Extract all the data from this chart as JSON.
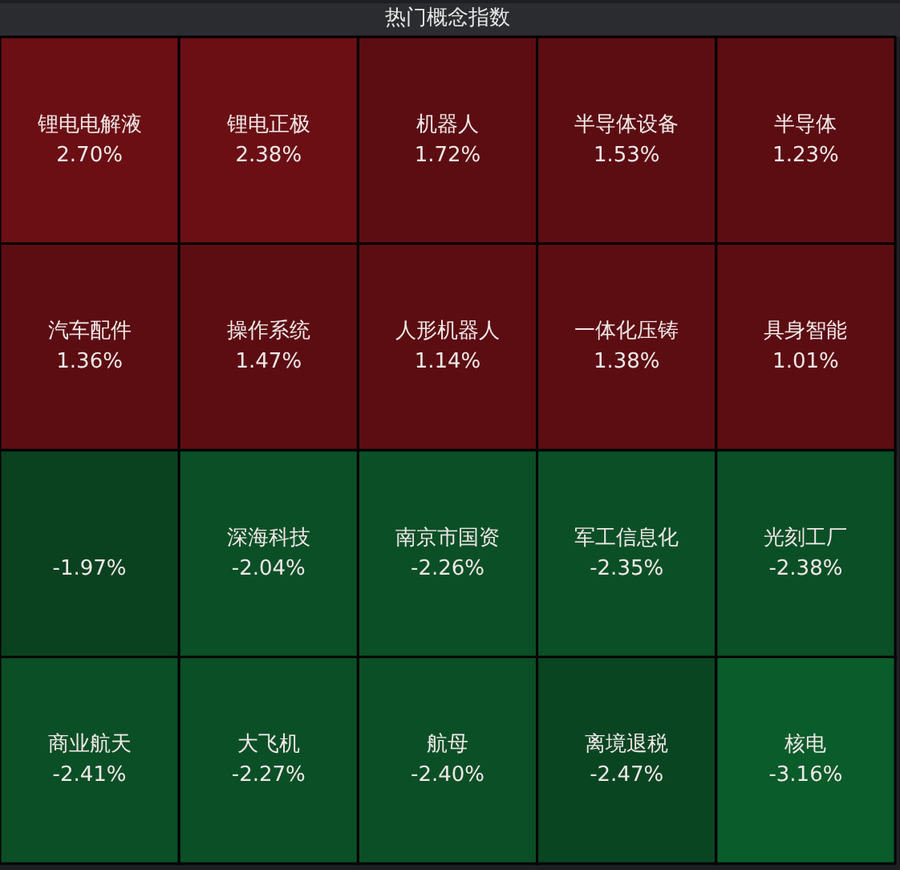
{
  "chart_data": {
    "type": "other",
    "title": "热门概念指数",
    "categories": [
      "锂电电解液",
      "锂电正极",
      "机器人",
      "半导体设备",
      "半导体",
      "汽车配件",
      "操作系统",
      "人形机器人",
      "一体化压铸",
      "具身智能",
      null,
      "深海科技",
      "南京市国资",
      "军工信息化",
      "光刻工厂",
      "商业航天",
      "大飞机",
      "航母",
      "离境退税",
      "核电"
    ],
    "values": [
      2.7,
      2.38,
      1.72,
      1.53,
      1.23,
      1.36,
      1.47,
      1.14,
      1.38,
      1.01,
      -1.97,
      -2.04,
      -2.26,
      -2.35,
      -2.38,
      -2.41,
      -2.27,
      -2.4,
      -2.47,
      -3.16
    ],
    "value_labels": [
      "2.70%",
      "2.38%",
      "1.72%",
      "1.53%",
      "1.23%",
      "1.36%",
      "1.47%",
      "1.14%",
      "1.38%",
      "1.01%",
      "-1.97%",
      "-2.04%",
      "-2.26%",
      "-2.35%",
      "-2.38%",
      "-2.41%",
      "-2.27%",
      "-2.40%",
      "-2.47%",
      "-3.16%"
    ],
    "colors": [
      "#6b0f15",
      "#6b0f15",
      "#5c0d12",
      "#5c0d12",
      "#5c0d12",
      "#5c0d12",
      "#5c0d12",
      "#5c0d12",
      "#5c0d12",
      "#5c0d12",
      "#0a4220",
      "#0b4f26",
      "#0b4f26",
      "#0b4f26",
      "#0b4f26",
      "#0b4f26",
      "#0b4f26",
      "#0b4f26",
      "#0a4522",
      "#0a5c2a"
    ]
  }
}
